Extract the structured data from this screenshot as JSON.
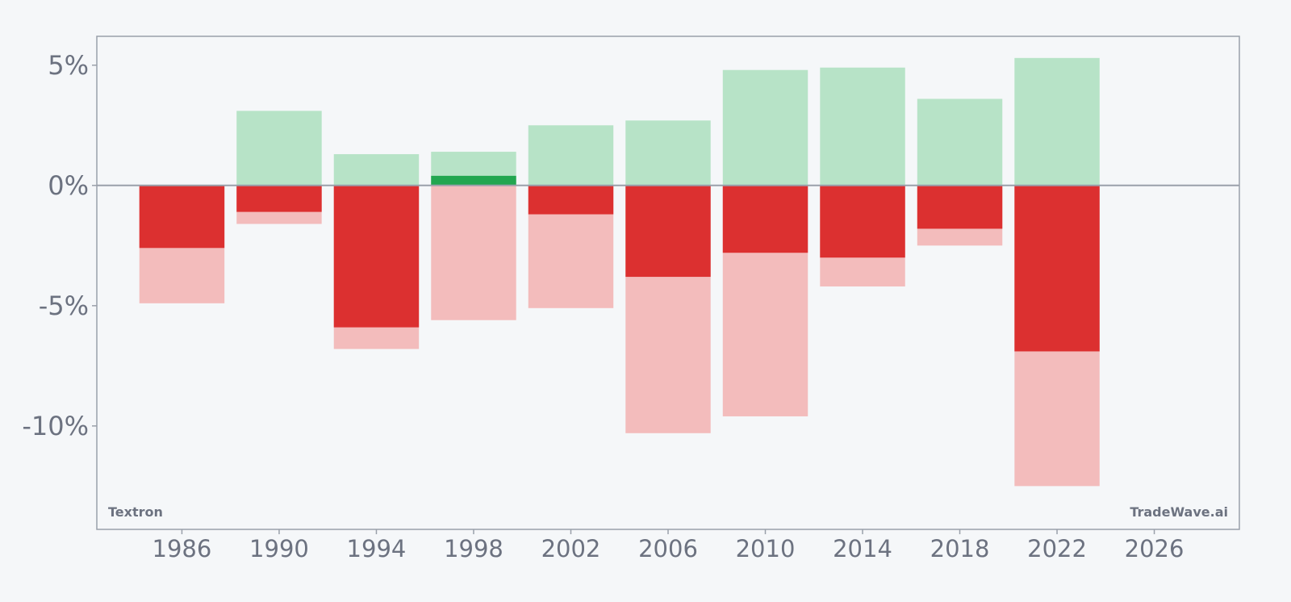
{
  "chart_data": {
    "type": "bar",
    "x": [
      1986,
      1990,
      1994,
      1998,
      2002,
      2006,
      2010,
      2014,
      2018,
      2022
    ],
    "series": [
      {
        "values": [
          0,
          3.1,
          1.3,
          1.4,
          2.5,
          2.7,
          4.8,
          4.9,
          3.6,
          5.3
        ]
      },
      {
        "values": [
          0,
          0,
          0,
          0.4,
          0,
          0,
          0,
          0,
          0,
          0
        ]
      },
      {
        "values": [
          -4.9,
          -1.6,
          -6.8,
          -5.6,
          -5.1,
          -10.3,
          -9.6,
          -4.2,
          -2.5,
          -12.5
        ]
      },
      {
        "values": [
          -2.6,
          -1.1,
          -5.9,
          0,
          -1.2,
          -3.8,
          -2.8,
          -3.0,
          -1.8,
          -6.9
        ]
      }
    ],
    "x_ticks": [
      "1986",
      "1990",
      "1994",
      "1998",
      "2002",
      "2006",
      "2010",
      "2014",
      "2018",
      "2022",
      "2026"
    ],
    "y_ticks": [
      "5%",
      "0%",
      "-5%",
      "-10%"
    ],
    "xlim": [
      1982.5,
      2029.5
    ],
    "ylim": [
      -14.3,
      6.2
    ],
    "grid": false,
    "colors": {
      "light_green": "#b7e3c7",
      "dark_green": "#22a650",
      "light_red": "#f3bcbc",
      "dark_red": "#dc3030",
      "axis": "#9aa0aa",
      "text": "#6c7280"
    }
  },
  "watermark_left": "Textron",
  "watermark_right": "TradeWave.ai"
}
